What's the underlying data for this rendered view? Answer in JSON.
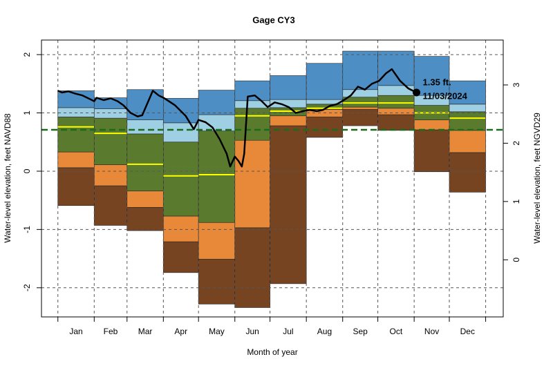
{
  "chart_data": {
    "type": "percentile-bands",
    "title": "Gage CY3",
    "x_label": "Month of year",
    "y_label": "Water-level elevation, feet NAVD88",
    "y2_label": "Water-level elevation, feet NGVD29",
    "categories": [
      "Jan",
      "Feb",
      "Mar",
      "Apr",
      "May",
      "Jun",
      "Jul",
      "Aug",
      "Sep",
      "Oct",
      "Nov",
      "Dec"
    ],
    "xlim": [
      -13,
      381
    ],
    "xticks": [
      1,
      32,
      60,
      91,
      121,
      152,
      182,
      213,
      244,
      274,
      305,
      335,
      366
    ],
    "ylim": [
      -2.5,
      2.25
    ],
    "yticks": [
      -2,
      -1,
      0,
      1,
      2
    ],
    "y2lim": [
      -0.98,
      3.77
    ],
    "y2ticks": [
      0,
      1,
      2,
      3
    ],
    "grid": true,
    "levels": [
      {
        "values": [
          -0.59,
          -0.93,
          -1.02,
          -1.74,
          -2.28,
          -2.34,
          -1.93,
          0.58,
          0.78,
          0.7,
          -0.01,
          -0.36
        ]
      },
      {
        "values": [
          0.06,
          -0.25,
          -0.62,
          -1.21,
          -1.51,
          -0.97,
          0.78,
          0.93,
          1.06,
          0.97,
          0.71,
          0.32
        ]
      },
      {
        "values": [
          0.33,
          0.11,
          -0.34,
          -0.77,
          -0.88,
          0.53,
          0.95,
          1.06,
          1.1,
          1.08,
          0.88,
          0.7
        ]
      },
      {
        "values": [
          0.93,
          0.91,
          0.64,
          0.5,
          0.69,
          1.08,
          1.09,
          1.15,
          1.27,
          1.3,
          1.13,
          1.02
        ]
      },
      {
        "values": [
          1.09,
          1.07,
          0.88,
          0.83,
          0.97,
          1.21,
          1.23,
          1.23,
          1.4,
          1.47,
          1.3,
          1.15
        ]
      },
      {
        "values": [
          1.38,
          1.26,
          1.4,
          1.25,
          1.39,
          1.55,
          1.64,
          1.85,
          2.06,
          2.06,
          1.97,
          1.55
        ]
      }
    ],
    "band_colors": [
      "#774422",
      "#e8893a",
      "#5a7a2e",
      "#9ecfe2",
      "#4d8fc4"
    ],
    "median": {
      "color": "#ffff00",
      "values": [
        0.76,
        0.65,
        0.12,
        -0.08,
        -0.06,
        0.95,
        1.03,
        1.08,
        1.17,
        1.17,
        1.0,
        0.91
      ]
    },
    "reference_line": {
      "value": 0.71,
      "color": "#1a6b1a"
    },
    "daily": {
      "color": "#000000",
      "x": [
        1,
        4.5,
        10,
        16,
        22,
        32,
        34,
        40,
        46,
        52,
        57,
        63,
        69,
        73,
        82,
        87,
        92,
        101,
        110,
        117,
        121,
        127,
        133,
        139,
        145,
        148,
        152,
        155,
        158,
        160,
        163,
        169,
        175,
        180,
        186,
        192,
        198,
        204,
        210,
        216,
        222,
        227,
        233,
        239,
        245,
        251,
        257,
        263,
        269,
        275,
        281,
        286,
        293,
        300,
        307
      ],
      "values": [
        1.38,
        1.35,
        1.37,
        1.33,
        1.3,
        1.2,
        1.26,
        1.22,
        1.25,
        1.2,
        1.13,
        1.0,
        0.94,
        0.96,
        1.38,
        1.3,
        1.25,
        1.13,
        0.95,
        0.72,
        0.88,
        0.84,
        0.75,
        0.55,
        0.3,
        0.08,
        0.25,
        0.18,
        0.08,
        0.3,
        1.28,
        1.3,
        1.2,
        1.1,
        1.18,
        1.15,
        1.1,
        1.0,
        1.03,
        1.05,
        1.03,
        1.05,
        1.12,
        1.15,
        1.22,
        1.3,
        1.45,
        1.4,
        1.5,
        1.55,
        1.68,
        1.75,
        1.55,
        1.42,
        1.35
      ]
    },
    "current": {
      "x": 307,
      "value": 1.35,
      "label": "1.35 ft.",
      "date": "11/03/2024"
    }
  }
}
